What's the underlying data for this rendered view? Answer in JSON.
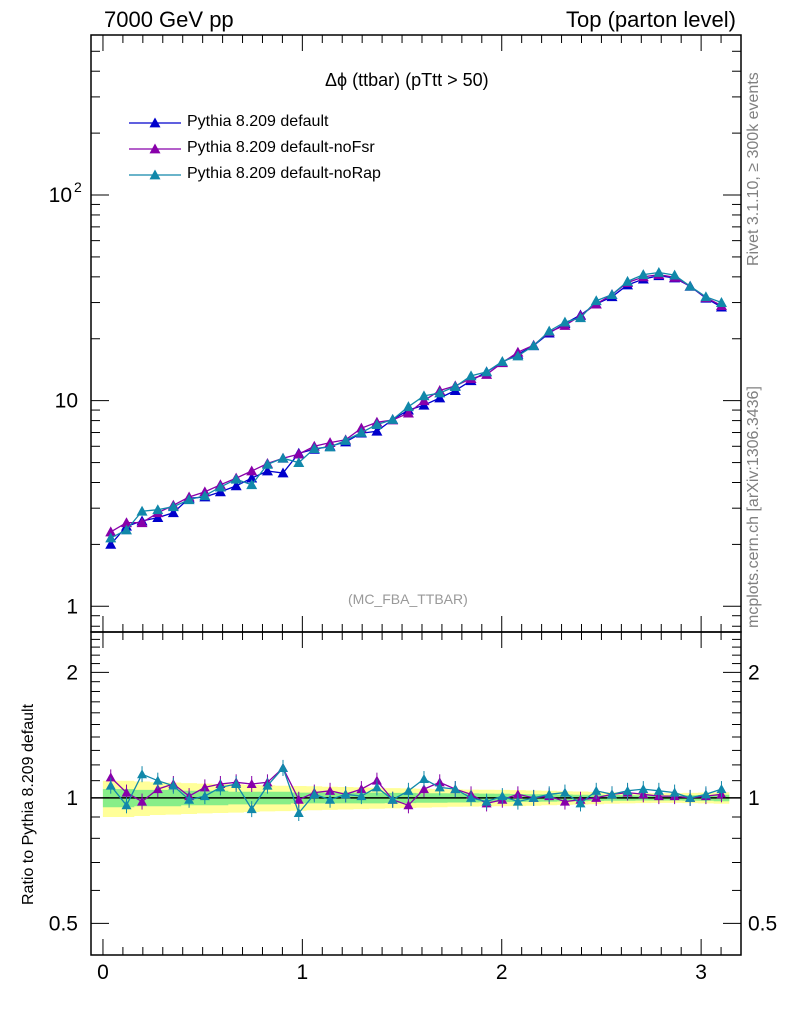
{
  "header": {
    "left": "7000 GeV pp",
    "right": "Top (parton level)"
  },
  "side_text": {
    "top": "Rivet 3.1.10, ≥ 300k events",
    "bottom": "mcplots.cern.ch [arXiv:1306.3436]"
  },
  "watermark": "(MC_FBA_TTBAR)",
  "chart_data": {
    "type": "line",
    "title": "Δϕ (ttbar) (pTtt > 50)",
    "xlabel": "",
    "ylabel": "",
    "xlim": [
      -0.06,
      3.2
    ],
    "ylim": [
      0.75,
      600
    ],
    "log_y": true,
    "grid": false,
    "legend_position": "top-left",
    "x_ticks": [
      "0",
      "1",
      "2",
      "3"
    ],
    "y_ticks": [
      "1",
      "10",
      "10^2"
    ],
    "x": [
      0.039,
      0.118,
      0.196,
      0.275,
      0.353,
      0.432,
      0.511,
      0.589,
      0.668,
      0.746,
      0.825,
      0.903,
      0.982,
      1.06,
      1.139,
      1.217,
      1.296,
      1.374,
      1.453,
      1.532,
      1.61,
      1.689,
      1.767,
      1.846,
      1.924,
      2.003,
      2.081,
      2.16,
      2.238,
      2.317,
      2.395,
      2.474,
      2.553,
      2.631,
      2.71,
      2.788,
      2.867,
      2.945,
      3.024,
      3.102
    ],
    "series": [
      {
        "name": "Pythia 8.209 default",
        "color": "#0000cc",
        "values": [
          2.0,
          2.45,
          2.6,
          2.7,
          2.85,
          3.35,
          3.4,
          3.6,
          3.85,
          4.2,
          4.55,
          4.45,
          5.55,
          5.8,
          6.0,
          6.3,
          6.95,
          7.1,
          8.1,
          9.0,
          9.5,
          10.3,
          11.2,
          12.5,
          13.8,
          15.4,
          16.8,
          18.5,
          21.3,
          23.7,
          26.1,
          29.5,
          32.0,
          36.5,
          39.0,
          40.5,
          39.5,
          36.0,
          31.5,
          28.5
        ],
        "ratio": [
          1.0,
          1.0,
          1.0,
          1.0,
          1.0,
          1.0,
          1.0,
          1.0,
          1.0,
          1.0,
          1.0,
          1.0,
          1.0,
          1.0,
          1.0,
          1.0,
          1.0,
          1.0,
          1.0,
          1.0,
          1.0,
          1.0,
          1.0,
          1.0,
          1.0,
          1.0,
          1.0,
          1.0,
          1.0,
          1.0,
          1.0,
          1.0,
          1.0,
          1.0,
          1.0,
          1.0,
          1.0,
          1.0,
          1.0,
          1.0
        ]
      },
      {
        "name": "Pythia 8.209 default-noFsr",
        "color": "#8800aa",
        "values": [
          2.3,
          2.55,
          2.55,
          2.85,
          3.1,
          3.4,
          3.6,
          3.9,
          4.2,
          4.55,
          4.95,
          5.25,
          5.5,
          6.0,
          6.25,
          6.45,
          7.35,
          7.85,
          8.05,
          8.7,
          10.0,
          11.2,
          11.8,
          12.8,
          13.4,
          15.3,
          17.2,
          18.6,
          21.6,
          23.2,
          25.9,
          29.5,
          32.8,
          37.5,
          40.0,
          41.0,
          39.8,
          36.0,
          31.7,
          29.0
        ],
        "ratio": [
          1.12,
          1.03,
          0.98,
          1.05,
          1.08,
          1.01,
          1.06,
          1.08,
          1.09,
          1.08,
          1.09,
          1.18,
          0.99,
          1.03,
          1.04,
          1.02,
          1.05,
          1.1,
          0.99,
          0.96,
          1.05,
          1.09,
          1.05,
          1.02,
          0.97,
          0.99,
          1.02,
          1.0,
          1.01,
          0.98,
          0.99,
          1.0,
          1.02,
          1.03,
          1.02,
          1.01,
          1.01,
          1.0,
          1.01,
          1.02
        ]
      },
      {
        "name": "Pythia 8.209 default-noRap",
        "color": "#1188aa",
        "values": [
          2.15,
          2.35,
          2.9,
          2.95,
          3.05,
          3.3,
          3.45,
          3.8,
          4.15,
          3.9,
          4.9,
          5.25,
          5.0,
          5.85,
          5.95,
          6.4,
          7.0,
          7.65,
          8.1,
          9.35,
          10.55,
          10.9,
          11.7,
          13.2,
          13.8,
          15.5,
          16.5,
          18.5,
          21.8,
          24.1,
          25.3,
          30.6,
          32.8,
          38.0,
          41.0,
          42.0,
          40.8,
          36.0,
          32.0,
          30.0
        ],
        "ratio": [
          1.07,
          0.96,
          1.14,
          1.1,
          1.07,
          0.99,
          1.01,
          1.06,
          1.08,
          0.94,
          1.07,
          1.18,
          0.92,
          1.02,
          0.99,
          1.02,
          1.01,
          1.06,
          0.99,
          1.04,
          1.11,
          1.06,
          1.05,
          1.0,
          0.98,
          1.01,
          0.98,
          1.0,
          1.02,
          1.03,
          0.97,
          1.04,
          1.02,
          1.04,
          1.05,
          1.04,
          1.03,
          1.0,
          1.02,
          1.05
        ]
      }
    ],
    "ratio_panel": {
      "ylabel": "Ratio to Pythia 8.209 default",
      "ylim": [
        0.42,
        2.5
      ],
      "y_ticks": [
        "0.5",
        "1",
        "2"
      ],
      "band_inner": [
        0.05,
        0.05,
        0.045,
        0.045,
        0.045,
        0.04,
        0.04,
        0.04,
        0.035,
        0.035,
        0.035,
        0.035,
        0.03,
        0.03,
        0.03,
        0.03,
        0.03,
        0.03,
        0.028,
        0.028,
        0.026,
        0.026,
        0.025,
        0.025,
        0.024,
        0.023,
        0.022,
        0.021,
        0.02,
        0.019,
        0.018,
        0.017,
        0.016,
        0.015,
        0.014,
        0.014,
        0.014,
        0.015,
        0.016,
        0.018
      ],
      "band_outer": [
        0.1,
        0.1,
        0.095,
        0.09,
        0.088,
        0.085,
        0.082,
        0.08,
        0.078,
        0.075,
        0.072,
        0.07,
        0.068,
        0.066,
        0.064,
        0.062,
        0.06,
        0.058,
        0.056,
        0.054,
        0.052,
        0.05,
        0.048,
        0.047,
        0.046,
        0.045,
        0.044,
        0.042,
        0.04,
        0.038,
        0.036,
        0.034,
        0.032,
        0.03,
        0.028,
        0.027,
        0.027,
        0.028,
        0.03,
        0.032
      ]
    }
  }
}
